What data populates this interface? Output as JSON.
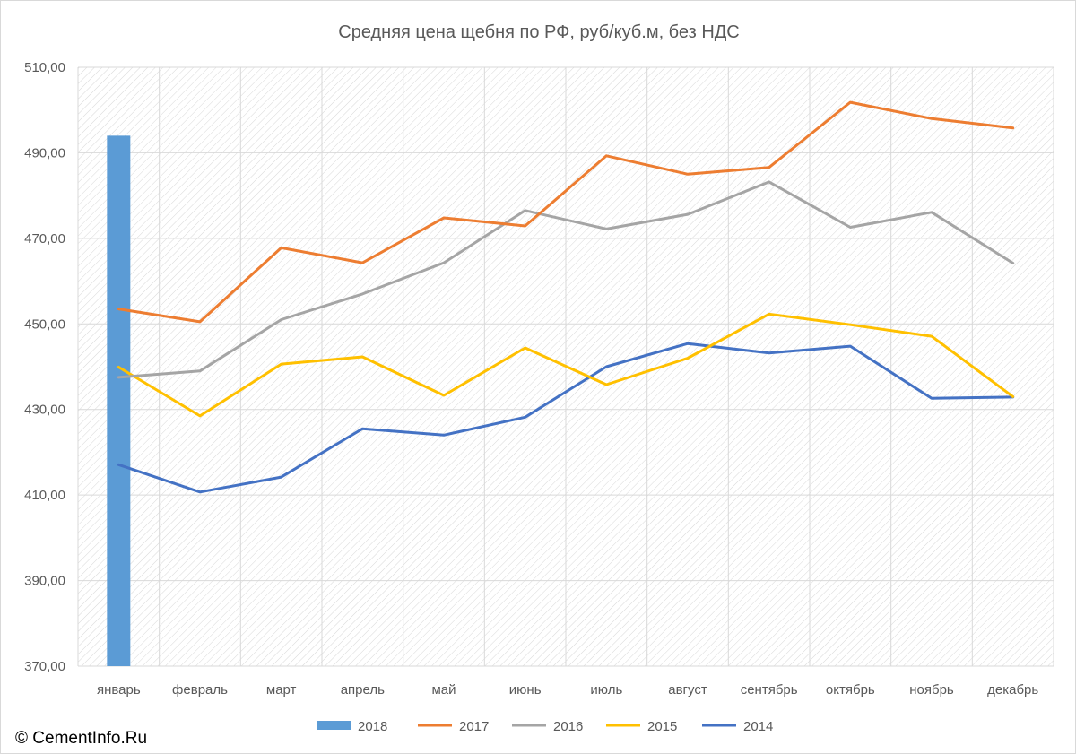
{
  "chart_data": {
    "type": "line",
    "title": "Средняя цена щебня по РФ, руб/куб.м, без НДС",
    "categories": [
      "январь",
      "февраль",
      "март",
      "апрель",
      "май",
      "июнь",
      "июль",
      "август",
      "сентябрь",
      "октябрь",
      "ноябрь",
      "декабрь"
    ],
    "ylim": [
      370,
      510
    ],
    "yticks": [
      "370,00",
      "390,00",
      "410,00",
      "430,00",
      "450,00",
      "470,00",
      "490,00",
      "510,00"
    ],
    "grid": true,
    "legend_position": "bottom",
    "series": [
      {
        "name": "2018",
        "type": "bar",
        "color": "#5B9BD5",
        "values": [
          494.0,
          null,
          null,
          null,
          null,
          null,
          null,
          null,
          null,
          null,
          null,
          null
        ]
      },
      {
        "name": "2017",
        "type": "line",
        "color": "#ED7D31",
        "values": [
          453.5,
          450.5,
          467.8,
          464.3,
          474.8,
          472.9,
          489.3,
          485.0,
          486.6,
          501.8,
          498.0,
          495.8
        ]
      },
      {
        "name": "2016",
        "type": "line",
        "color": "#A5A5A5",
        "values": [
          437.5,
          439.0,
          451.0,
          457.0,
          464.3,
          476.5,
          472.2,
          475.6,
          483.2,
          472.6,
          476.1,
          464.2
        ]
      },
      {
        "name": "2015",
        "type": "line",
        "color": "#FFC000",
        "values": [
          439.9,
          428.5,
          440.6,
          442.3,
          433.3,
          444.4,
          435.8,
          442.0,
          452.3,
          449.8,
          447.1,
          433.0
        ]
      },
      {
        "name": "2014",
        "type": "line",
        "color": "#4472C4",
        "values": [
          417.1,
          410.7,
          414.2,
          425.5,
          424.0,
          428.2,
          440.0,
          445.4,
          443.2,
          444.8,
          432.6,
          432.9
        ]
      }
    ]
  },
  "copyright": "© CementInfo.Ru"
}
